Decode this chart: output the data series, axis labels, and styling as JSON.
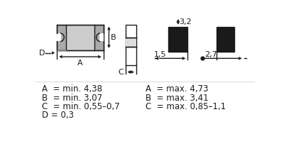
{
  "bg_color": "#ffffff",
  "text_color": "#1a1a1a",
  "line_color": "#1a1a1a",
  "gray_fill": "#cccccc",
  "darkgray_fill": "#aaaaaa",
  "black_fill": "#1a1a1a",
  "white_fill": "#ffffff",
  "measurements_left": [
    "A  = min. 4,38",
    "B  = min. 3,07",
    "C  = min. 0,55–0,7",
    "D = 0,3"
  ],
  "measurements_right": [
    "A  = max. 4,73",
    "B  = max. 3,41",
    "C  = max. 0,85–1,1",
    ""
  ],
  "label_32": "3,2",
  "label_15": "1,5",
  "label_27": "2,7",
  "label_A": "A",
  "label_B": "B",
  "label_C": "C",
  "label_D": "D"
}
